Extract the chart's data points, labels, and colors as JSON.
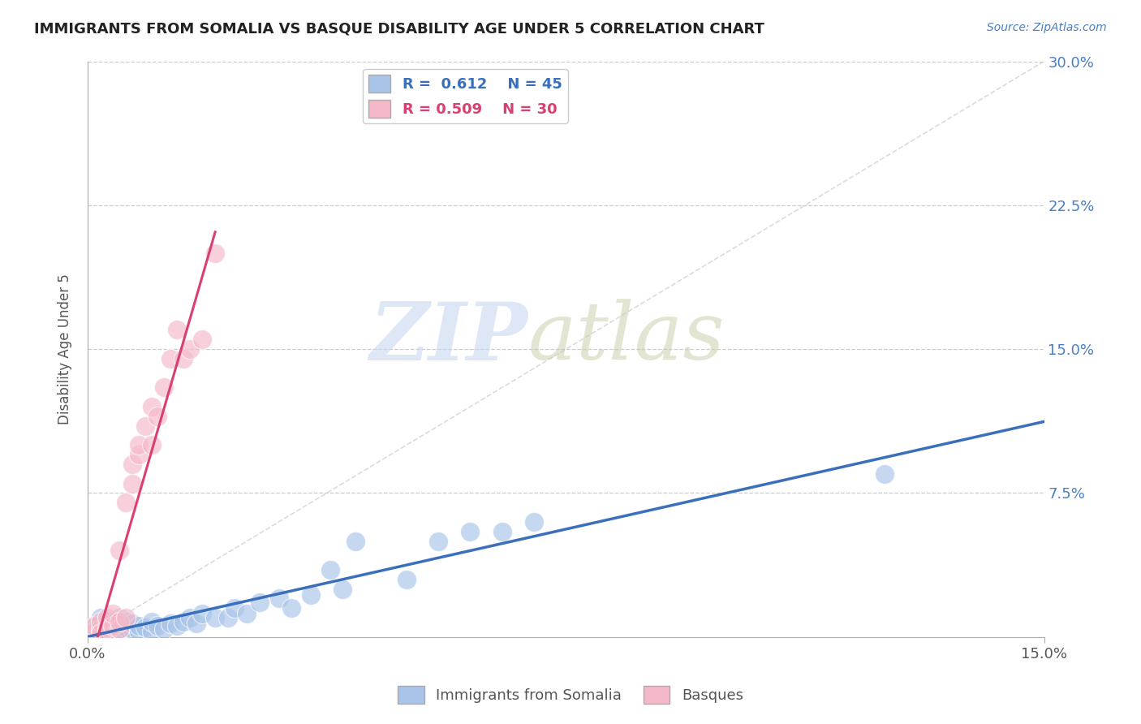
{
  "title": "IMMIGRANTS FROM SOMALIA VS BASQUE DISABILITY AGE UNDER 5 CORRELATION CHART",
  "source": "Source: ZipAtlas.com",
  "ylabel": "Disability Age Under 5",
  "xlim": [
    0.0,
    0.15
  ],
  "ylim": [
    0.0,
    0.3
  ],
  "yticks": [
    0.0,
    0.075,
    0.15,
    0.225,
    0.3
  ],
  "ytick_labels": [
    "",
    "7.5%",
    "15.0%",
    "22.5%",
    "30.0%"
  ],
  "xtick_labels": [
    "0.0%",
    "15.0%"
  ],
  "xtick_pos": [
    0.0,
    0.15
  ],
  "blue_R": 0.612,
  "blue_N": 45,
  "pink_R": 0.509,
  "pink_N": 30,
  "blue_color": "#a8c4e8",
  "pink_color": "#f5b8c8",
  "blue_line_color": "#3a6fbb",
  "pink_line_color": "#d94070",
  "diag_line_color": "#cccccc",
  "legend_label_blue": "Immigrants from Somalia",
  "legend_label_pink": "Basques",
  "blue_scatter_x": [
    0.001,
    0.002,
    0.002,
    0.003,
    0.003,
    0.003,
    0.004,
    0.004,
    0.005,
    0.005,
    0.005,
    0.006,
    0.006,
    0.007,
    0.007,
    0.008,
    0.008,
    0.009,
    0.01,
    0.01,
    0.011,
    0.012,
    0.013,
    0.014,
    0.015,
    0.016,
    0.017,
    0.018,
    0.02,
    0.022,
    0.023,
    0.025,
    0.027,
    0.03,
    0.032,
    0.035,
    0.038,
    0.04,
    0.042,
    0.05,
    0.055,
    0.06,
    0.065,
    0.07,
    0.125
  ],
  "blue_scatter_y": [
    0.005,
    0.003,
    0.01,
    0.004,
    0.006,
    0.008,
    0.005,
    0.007,
    0.002,
    0.004,
    0.01,
    0.005,
    0.008,
    0.004,
    0.007,
    0.003,
    0.006,
    0.005,
    0.003,
    0.008,
    0.006,
    0.004,
    0.007,
    0.006,
    0.008,
    0.01,
    0.007,
    0.012,
    0.01,
    0.01,
    0.015,
    0.012,
    0.018,
    0.02,
    0.015,
    0.022,
    0.035,
    0.025,
    0.05,
    0.03,
    0.05,
    0.055,
    0.055,
    0.06,
    0.085
  ],
  "pink_scatter_x": [
    0.001,
    0.001,
    0.002,
    0.002,
    0.002,
    0.003,
    0.003,
    0.003,
    0.004,
    0.004,
    0.005,
    0.005,
    0.005,
    0.006,
    0.006,
    0.007,
    0.007,
    0.008,
    0.008,
    0.009,
    0.01,
    0.01,
    0.011,
    0.012,
    0.013,
    0.014,
    0.015,
    0.016,
    0.018,
    0.02
  ],
  "pink_scatter_y": [
    0.003,
    0.006,
    0.004,
    0.008,
    0.002,
    0.005,
    0.01,
    0.003,
    0.006,
    0.012,
    0.004,
    0.008,
    0.045,
    0.01,
    0.07,
    0.08,
    0.09,
    0.095,
    0.1,
    0.11,
    0.12,
    0.1,
    0.115,
    0.13,
    0.145,
    0.16,
    0.145,
    0.15,
    0.155,
    0.2
  ]
}
